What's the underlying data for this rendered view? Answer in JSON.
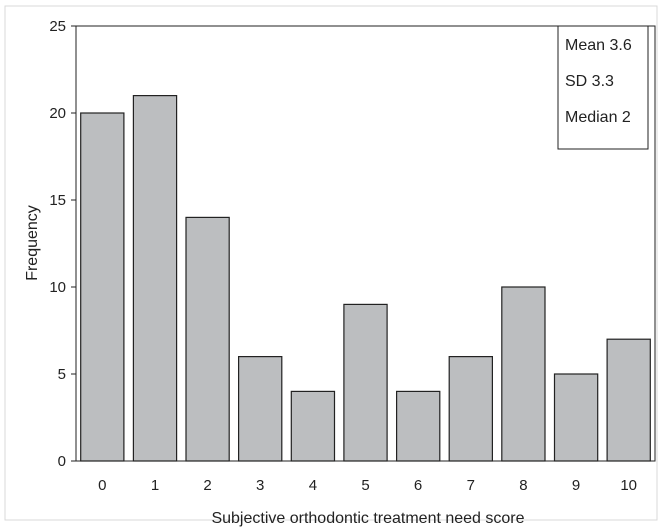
{
  "chart_data": {
    "type": "bar",
    "categories": [
      "0",
      "1",
      "2",
      "3",
      "4",
      "5",
      "6",
      "7",
      "8",
      "9",
      "10"
    ],
    "values": [
      20,
      21,
      14,
      6,
      4,
      9,
      4,
      6,
      10,
      5,
      7
    ],
    "title": "",
    "xlabel": "Subjective orthodontic treatment need score",
    "ylabel": "Frequency",
    "ylim": [
      0,
      25
    ],
    "yticks": [
      0,
      5,
      10,
      15,
      20,
      25
    ],
    "grid": false,
    "bar_color": "#bcbec0",
    "bar_edge_color": "#222222",
    "legend": {
      "placement": "top-right",
      "entries": [
        "Mean 3.6",
        "SD 3.3",
        "Median 2"
      ]
    }
  }
}
